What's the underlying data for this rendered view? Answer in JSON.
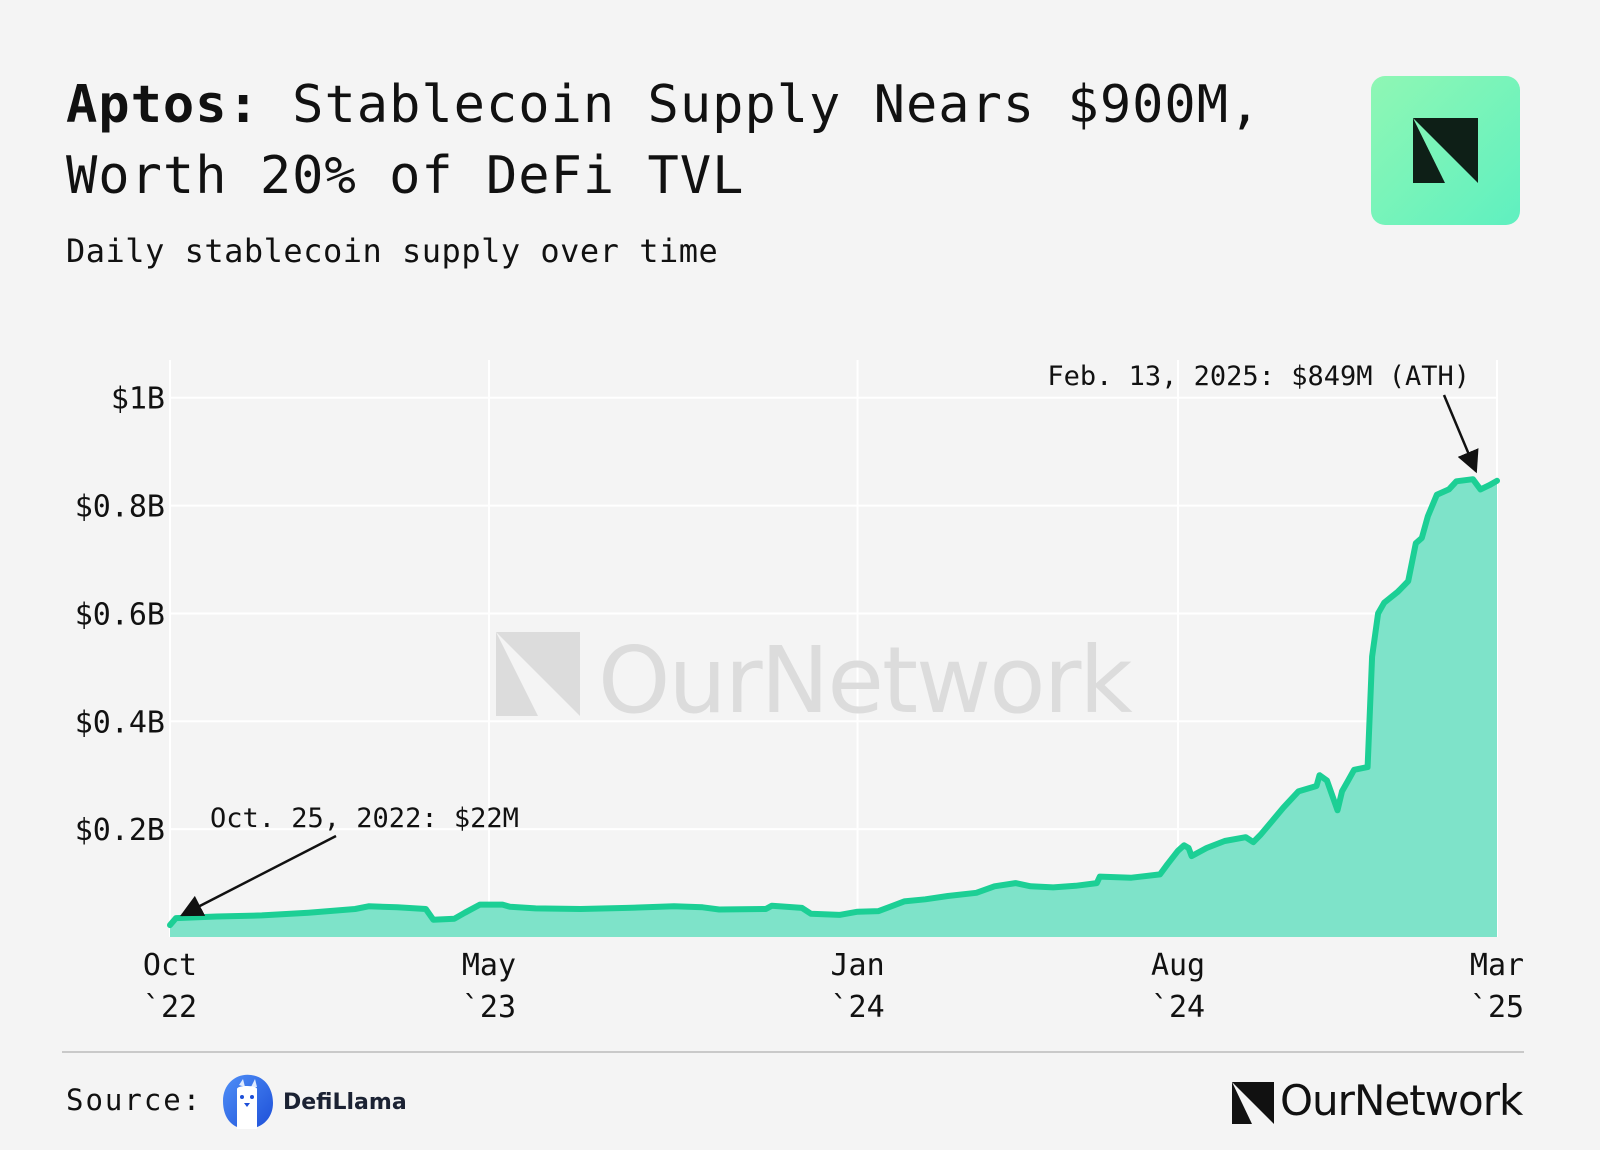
{
  "header": {
    "title_lead": "Aptos:",
    "title_rest": " Stablecoin Supply Nears $900M, Worth 20% of DeFi TVL",
    "subtitle": "Daily stablecoin supply over time"
  },
  "colors": {
    "line": "#1ccf95",
    "area": "#7ee3c9",
    "grid": "#ffffff",
    "badge": "#7ff5bd"
  },
  "chart_data": {
    "type": "area",
    "title": "Aptos: Stablecoin Supply Nears $900M, Worth 20% of DeFi TVL",
    "subtitle": "Daily stablecoin supply over time",
    "xlabel": "",
    "ylabel": "",
    "grid": true,
    "ylim": [
      0,
      1.07
    ],
    "y_unit": "billions USD",
    "y_ticks": [
      {
        "value": 0.2,
        "label": "$0.2B"
      },
      {
        "value": 0.4,
        "label": "$0.4B"
      },
      {
        "value": 0.6,
        "label": "$0.6B"
      },
      {
        "value": 0.8,
        "label": "$0.8B"
      },
      {
        "value": 1.0,
        "label": "$1B"
      }
    ],
    "xlim": [
      "2022-10-01",
      "2025-03-01"
    ],
    "x_ticks": [
      {
        "date": "2022-10-01",
        "label": [
          "Oct",
          "`22"
        ]
      },
      {
        "date": "2023-05-01",
        "label": [
          "May",
          "`23"
        ]
      },
      {
        "date": "2024-01-01",
        "label": [
          "Jan",
          "`24"
        ]
      },
      {
        "date": "2024-08-01",
        "label": [
          "Aug",
          "`24"
        ]
      },
      {
        "date": "2025-03-01",
        "label": [
          "Mar",
          "`25"
        ]
      }
    ],
    "series": [
      {
        "points": [
          [
            "2022-10-01",
            0.022
          ],
          [
            "2022-10-05",
            0.035
          ],
          [
            "2022-11-01",
            0.038
          ],
          [
            "2022-12-01",
            0.04
          ],
          [
            "2023-01-01",
            0.045
          ],
          [
            "2023-02-01",
            0.052
          ],
          [
            "2023-02-10",
            0.057
          ],
          [
            "2023-03-01",
            0.055
          ],
          [
            "2023-03-20",
            0.052
          ],
          [
            "2023-03-25",
            0.032
          ],
          [
            "2023-04-08",
            0.034
          ],
          [
            "2023-04-15",
            0.045
          ],
          [
            "2023-04-25",
            0.06
          ],
          [
            "2023-05-10",
            0.06
          ],
          [
            "2023-05-15",
            0.056
          ],
          [
            "2023-06-01",
            0.053
          ],
          [
            "2023-07-01",
            0.052
          ],
          [
            "2023-08-01",
            0.054
          ],
          [
            "2023-09-01",
            0.057
          ],
          [
            "2023-09-20",
            0.055
          ],
          [
            "2023-10-01",
            0.051
          ],
          [
            "2023-11-01",
            0.052
          ],
          [
            "2023-11-05",
            0.058
          ],
          [
            "2023-11-25",
            0.054
          ],
          [
            "2023-12-01",
            0.043
          ],
          [
            "2023-12-20",
            0.041
          ],
          [
            "2024-01-01",
            0.047
          ],
          [
            "2024-01-15",
            0.048
          ],
          [
            "2024-02-01",
            0.066
          ],
          [
            "2024-02-15",
            0.07
          ],
          [
            "2024-03-01",
            0.076
          ],
          [
            "2024-03-20",
            0.082
          ],
          [
            "2024-04-01",
            0.094
          ],
          [
            "2024-04-15",
            0.1
          ],
          [
            "2024-04-25",
            0.094
          ],
          [
            "2024-05-10",
            0.092
          ],
          [
            "2024-05-25",
            0.095
          ],
          [
            "2024-06-08",
            0.1
          ],
          [
            "2024-06-10",
            0.112
          ],
          [
            "2024-07-01",
            0.11
          ],
          [
            "2024-07-20",
            0.116
          ],
          [
            "2024-07-25",
            0.135
          ],
          [
            "2024-08-01",
            0.16
          ],
          [
            "2024-08-05",
            0.17
          ],
          [
            "2024-08-08",
            0.165
          ],
          [
            "2024-08-10",
            0.15
          ],
          [
            "2024-08-20",
            0.165
          ],
          [
            "2024-09-01",
            0.178
          ],
          [
            "2024-09-15",
            0.185
          ],
          [
            "2024-09-20",
            0.176
          ],
          [
            "2024-09-25",
            0.19
          ],
          [
            "2024-10-01",
            0.21
          ],
          [
            "2024-10-10",
            0.24
          ],
          [
            "2024-10-20",
            0.27
          ],
          [
            "2024-11-01",
            0.28
          ],
          [
            "2024-11-03",
            0.3
          ],
          [
            "2024-11-08",
            0.29
          ],
          [
            "2024-11-15",
            0.235
          ],
          [
            "2024-11-18",
            0.27
          ],
          [
            "2024-11-22",
            0.29
          ],
          [
            "2024-11-26",
            0.31
          ],
          [
            "2024-12-05",
            0.315
          ],
          [
            "2024-12-08",
            0.52
          ],
          [
            "2024-12-12",
            0.6
          ],
          [
            "2024-12-16",
            0.62
          ],
          [
            "2024-12-25",
            0.64
          ],
          [
            "2025-01-01",
            0.66
          ],
          [
            "2025-01-06",
            0.73
          ],
          [
            "2025-01-10",
            0.74
          ],
          [
            "2025-01-14",
            0.78
          ],
          [
            "2025-01-20",
            0.82
          ],
          [
            "2025-01-28",
            0.83
          ],
          [
            "2025-02-02",
            0.845
          ],
          [
            "2025-02-13",
            0.849
          ],
          [
            "2025-02-18",
            0.83
          ],
          [
            "2025-02-24",
            0.838
          ],
          [
            "2025-03-01",
            0.846
          ]
        ]
      }
    ],
    "annotations": [
      {
        "date": "2022-10-25",
        "value": 0.022,
        "text": "Oct. 25, 2022: $22M"
      },
      {
        "date": "2025-02-13",
        "value": 0.849,
        "text": "Feb. 13, 2025: $849M (ATH)"
      }
    ],
    "watermark": "OurNetwork"
  },
  "footer": {
    "source_label": "Source:",
    "source_name": "DefiLlama",
    "brand_name": "OurNetwork"
  }
}
